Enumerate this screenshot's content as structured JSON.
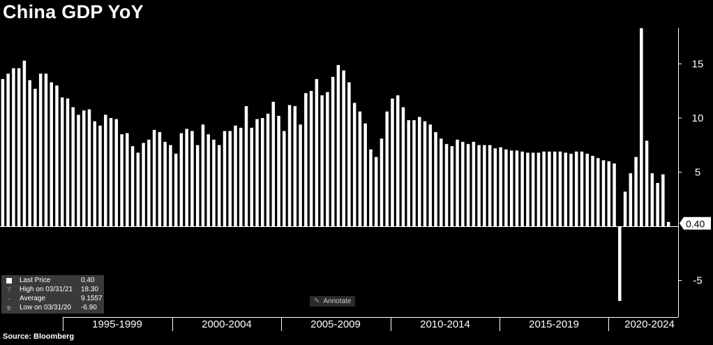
{
  "title": "China GDP YoY",
  "source": "Source: Bloomberg",
  "annotate_label": "Annotate",
  "annotate_icon": "pencil-icon",
  "last_value_label": "0.40",
  "legend": {
    "rows": [
      {
        "icon": "square-swatch-icon",
        "label": "Last Price",
        "value": "0.40"
      },
      {
        "icon": "high-marker-icon",
        "label": "High on 03/31/21",
        "value": "18.30"
      },
      {
        "icon": "average-marker-icon",
        "label": "Average",
        "value": "9.1557"
      },
      {
        "icon": "low-marker-icon",
        "label": "Low on 03/31/20",
        "value": "-6.90"
      }
    ]
  },
  "chart_data": {
    "type": "bar",
    "title": "China GDP YoY",
    "bar_color": "#ffffff",
    "background": "#000000",
    "x_tick_labels": [
      "1995-1999",
      "2000-2004",
      "2005-2009",
      "2010-2014",
      "2015-2019",
      "2020-2024"
    ],
    "y_ticks": [
      15,
      10,
      5,
      -5
    ],
    "ylim": [
      -7.5,
      18.5
    ],
    "grid": false,
    "y_axis_side": "right",
    "values": [
      13.6,
      14.1,
      14.6,
      14.6,
      15.3,
      13.5,
      12.7,
      14.1,
      14.1,
      13.3,
      13.0,
      11.9,
      11.8,
      11.0,
      10.3,
      10.7,
      10.8,
      9.7,
      9.3,
      10.3,
      10.0,
      9.9,
      8.5,
      8.6,
      7.4,
      6.8,
      7.7,
      8.0,
      8.9,
      8.7,
      7.8,
      7.5,
      6.7,
      8.6,
      9.0,
      8.8,
      7.5,
      9.4,
      8.5,
      8.0,
      7.5,
      8.8,
      8.8,
      9.3,
      9.1,
      11.1,
      9.1,
      9.9,
      10.0,
      10.4,
      11.5,
      10.2,
      8.8,
      11.2,
      11.1,
      9.4,
      12.3,
      12.5,
      13.6,
      12.1,
      12.4,
      13.8,
      14.9,
      14.4,
      13.3,
      11.4,
      10.6,
      9.5,
      7.1,
      6.4,
      8.1,
      10.6,
      11.8,
      12.1,
      11.0,
      9.8,
      9.8,
      10.1,
      9.7,
      9.4,
      8.7,
      8.1,
      7.6,
      7.4,
      8.0,
      7.8,
      7.6,
      7.8,
      7.5,
      7.5,
      7.5,
      7.2,
      7.3,
      7.1,
      7.0,
      7.0,
      6.9,
      6.8,
      6.8,
      6.8,
      6.9,
      6.9,
      6.9,
      6.9,
      6.8,
      6.7,
      6.9,
      6.9,
      6.7,
      6.5,
      6.3,
      6.1,
      6.0,
      5.8,
      -6.9,
      3.2,
      4.9,
      6.4,
      18.3,
      7.9,
      4.9,
      4.0,
      4.8,
      0.4
    ]
  }
}
